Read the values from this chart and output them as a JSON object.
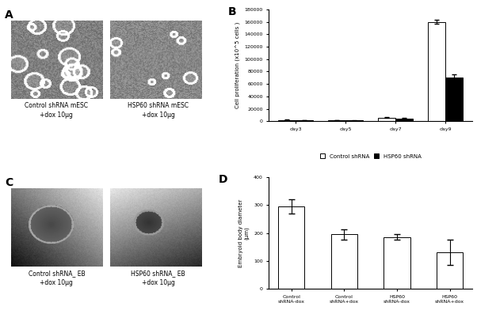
{
  "panel_B": {
    "days": [
      "day3",
      "day5",
      "day7",
      "day9"
    ],
    "control_values": [
      2000,
      1500,
      6000,
      160000
    ],
    "hsp60_values": [
      1500,
      1000,
      4000,
      70000
    ],
    "control_errors": [
      500,
      400,
      1000,
      3000
    ],
    "hsp60_errors": [
      400,
      300,
      800,
      5000
    ],
    "ylabel": "Cell proliferation (x10^5 cells )",
    "ylim": [
      0,
      180000
    ],
    "yticks": [
      0,
      20000,
      40000,
      60000,
      80000,
      100000,
      120000,
      140000,
      160000,
      180000
    ],
    "legend_labels": [
      "Control shRNA",
      "HSP60 shRNA"
    ],
    "bar_colors": [
      "white",
      "black"
    ],
    "bar_edgecolor": "black"
  },
  "panel_D": {
    "categories": [
      "Control\nshRNA-dox",
      "Control\nshRNA+dox",
      "HSP60\nshRNA-dox",
      "HSP60\nshRNA+dox"
    ],
    "values": [
      295,
      195,
      185,
      130
    ],
    "errors": [
      25,
      18,
      10,
      45
    ],
    "ylabel": "Embryoid body diameter\n(μm)",
    "ylim": [
      0,
      400
    ],
    "yticks": [
      0,
      100,
      200,
      300,
      400
    ],
    "bar_color": "white",
    "bar_edgecolor": "black"
  },
  "panel_A_label": "A",
  "panel_B_label": "B",
  "panel_C_label": "C",
  "panel_D_label": "D",
  "panel_A_img1_caption": "Control shRNA mESC\n+dox 10μg",
  "panel_A_img2_caption": "HSP60 shRNA mESC\n+dox 10μg",
  "panel_C_img1_caption": "Control shRNA_ EB\n+dox 10μg",
  "panel_C_img2_caption": "HSP60 shRNA_ EB\n+dox 10μg",
  "figure_bg": "#ffffff"
}
